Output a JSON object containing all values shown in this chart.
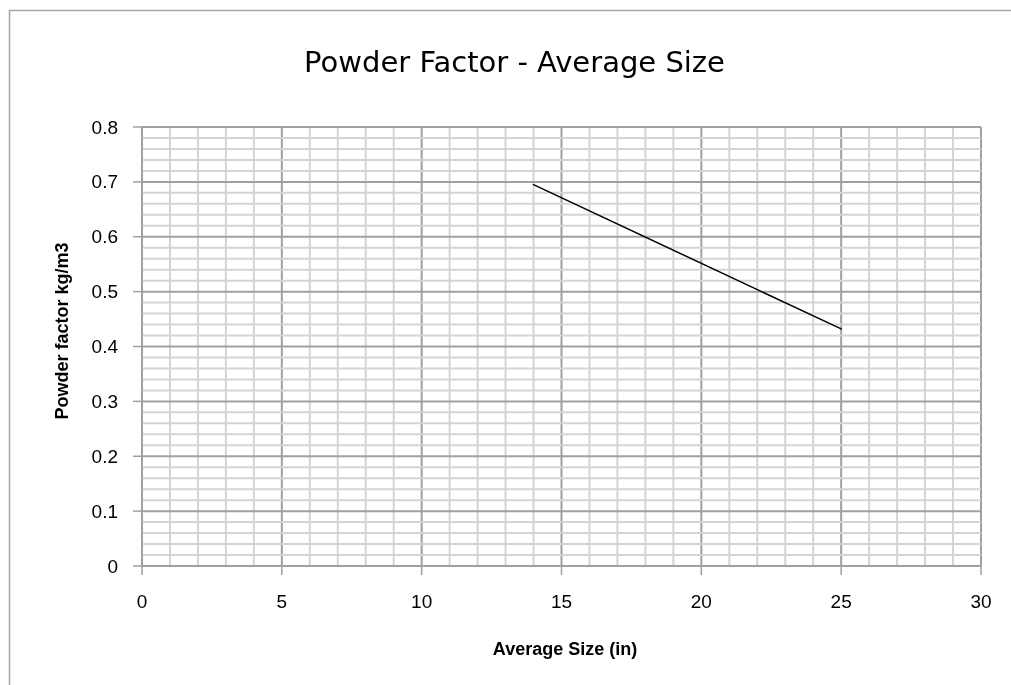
{
  "chart_data": {
    "type": "line",
    "title": "Powder Factor - Average Size",
    "xlabel": "Average Size (in)",
    "ylabel": "Powder factor kg/m3",
    "series": [
      {
        "color": "#000000",
        "x": [
          14,
          25
        ],
        "values": [
          0.695,
          0.432
        ]
      }
    ],
    "xlim": [
      0,
      30
    ],
    "xticks": [
      0,
      {
        "value": 1,
        "label": null
      },
      {
        "value": 2,
        "label": null
      },
      {
        "value": 3,
        "label": null
      },
      {
        "value": 4,
        "label": null
      },
      5,
      {
        "value": 6,
        "label": null
      },
      {
        "value": 7,
        "label": null
      },
      {
        "value": 8,
        "label": null
      },
      {
        "value": 9,
        "label": null
      },
      10,
      {
        "value": 11,
        "label": null
      },
      {
        "value": 12,
        "label": null
      },
      {
        "value": 13,
        "label": null
      },
      {
        "value": 14,
        "label": null
      },
      15,
      {
        "value": 16,
        "label": null
      },
      {
        "value": 17,
        "label": null
      },
      {
        "value": 18,
        "label": null
      },
      {
        "value": 19,
        "label": null
      },
      20,
      {
        "value": 21,
        "label": null
      },
      {
        "value": 22,
        "label": null
      },
      {
        "value": 23,
        "label": null
      },
      {
        "value": 24,
        "label": null
      },
      25,
      {
        "value": 26,
        "label": null
      },
      {
        "value": 27,
        "label": null
      },
      {
        "value": 28,
        "label": null
      },
      {
        "value": 29,
        "label": null
      },
      30
    ],
    "ylim": [
      0,
      0.8
    ],
    "yticks": [
      0,
      {
        "value": 0.02,
        "label": null
      },
      {
        "value": 0.04,
        "label": null
      },
      {
        "value": 0.06,
        "label": null
      },
      {
        "value": 0.08,
        "label": null
      },
      0.1,
      {
        "value": 0.12,
        "label": null
      },
      {
        "value": 0.14,
        "label": null
      },
      {
        "value": 0.16,
        "label": null
      },
      {
        "value": 0.18,
        "label": null
      },
      0.2,
      {
        "value": 0.22,
        "label": null
      },
      {
        "value": 0.24,
        "label": null
      },
      {
        "value": 0.26,
        "label": null
      },
      {
        "value": 0.28,
        "label": null
      },
      0.3,
      {
        "value": 0.32,
        "label": null
      },
      {
        "value": 0.34,
        "label": null
      },
      {
        "value": 0.36,
        "label": null
      },
      {
        "value": 0.38,
        "label": null
      },
      0.4,
      {
        "value": 0.42,
        "label": null
      },
      {
        "value": 0.44,
        "label": null
      },
      {
        "value": 0.46,
        "label": null
      },
      {
        "value": 0.48,
        "label": null
      },
      0.5,
      {
        "value": 0.52,
        "label": null
      },
      {
        "value": 0.54,
        "label": null
      },
      {
        "value": 0.56,
        "label": null
      },
      {
        "value": 0.58,
        "label": null
      },
      0.6,
      {
        "value": 0.62,
        "label": null
      },
      {
        "value": 0.64,
        "label": null
      },
      {
        "value": 0.66,
        "label": null
      },
      {
        "value": 0.68,
        "label": null
      },
      0.7,
      {
        "value": 0.72,
        "label": null
      },
      {
        "value": 0.74,
        "label": null
      },
      {
        "value": 0.76,
        "label": null
      },
      {
        "value": 0.78,
        "label": null
      },
      0.8
    ],
    "grid": true,
    "marker": "none",
    "line_style": "solid"
  }
}
